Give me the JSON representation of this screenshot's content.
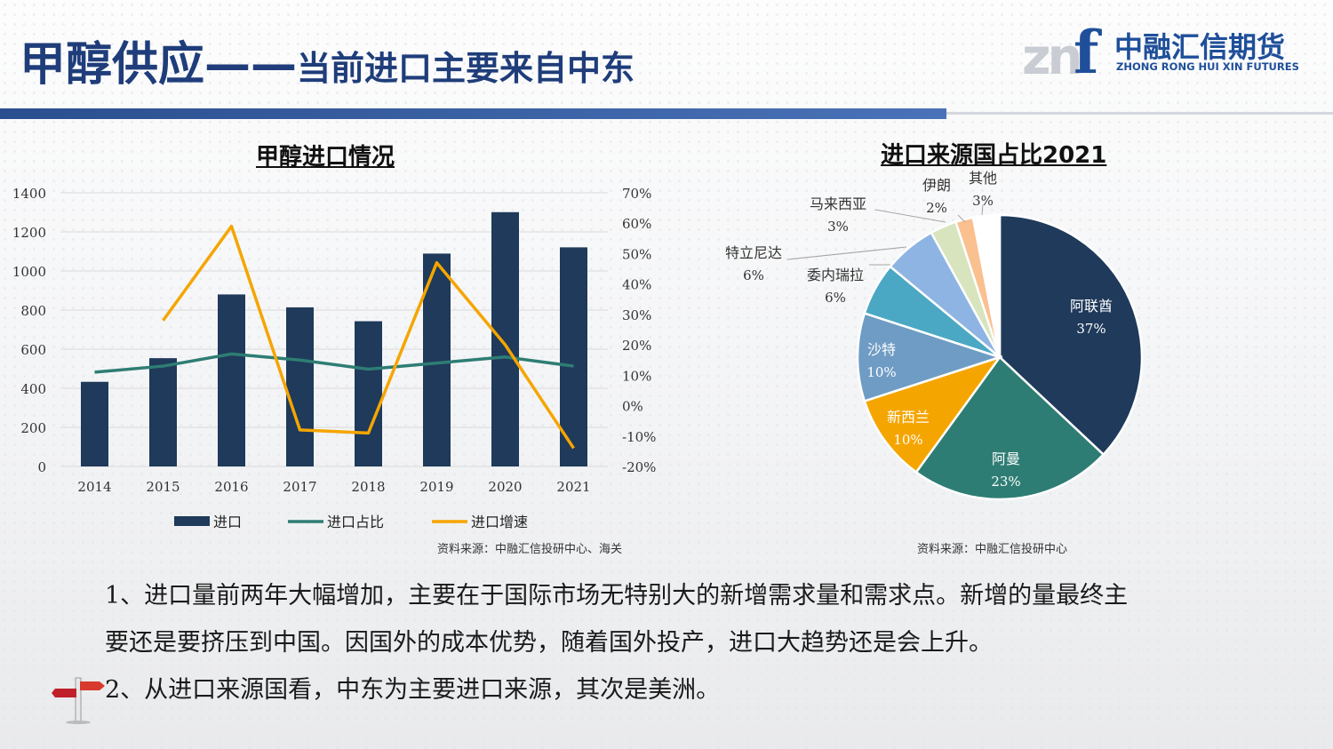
{
  "header": {
    "title_main": "甲醇供应——",
    "title_sub": "当前进口主要来自中东",
    "logo_mark": "znf",
    "logo_cn": "中融汇信期货",
    "logo_en": "ZHONG RONG HUI XIN FUTURES"
  },
  "colors": {
    "navy": "#1f3a5a",
    "teal": "#2e7d74",
    "orange": "#f5a500",
    "title_blue": "#1f3d7a"
  },
  "chart_data": [
    {
      "type": "bar",
      "title": "甲醇进口情况",
      "categories": [
        "2014",
        "2015",
        "2016",
        "2017",
        "2018",
        "2019",
        "2020",
        "2021"
      ],
      "y_ticks": [
        "0",
        "200",
        "400",
        "600",
        "800",
        "1000",
        "1200",
        "1400"
      ],
      "y2_ticks": [
        "-20%",
        "-10%",
        "0%",
        "10%",
        "20%",
        "30%",
        "40%",
        "50%",
        "60%",
        "70%"
      ],
      "ylim": [
        0,
        1400
      ],
      "y2lim": [
        -20,
        70
      ],
      "grid": true,
      "legend_position": "bottom",
      "series": [
        {
          "name": "进口",
          "kind": "bar",
          "axis": "left",
          "color": "#1f3a5a",
          "values": [
            433,
            554,
            880,
            814,
            743,
            1089,
            1301,
            1121
          ]
        },
        {
          "name": "进口占比",
          "kind": "line",
          "axis": "right",
          "color": "#2e7d74",
          "values": [
            11,
            13,
            17,
            15,
            12,
            14,
            16,
            13
          ]
        },
        {
          "name": "进口增速",
          "kind": "line",
          "axis": "right",
          "color": "#f5a500",
          "values": [
            null,
            28,
            59,
            -8,
            -9,
            47,
            20,
            -14
          ]
        }
      ],
      "source": "资料来源：中融汇信投研中心、海关"
    },
    {
      "type": "pie",
      "title": "进口来源国占比2021",
      "slices": [
        {
          "label": "阿联酋",
          "value": 37,
          "pct": "37%",
          "color": "#1f3a5a"
        },
        {
          "label": "阿曼",
          "value": 23,
          "pct": "23%",
          "color": "#2e7d74"
        },
        {
          "label": "新西兰",
          "value": 10,
          "pct": "10%",
          "color": "#f5a500"
        },
        {
          "label": "沙特",
          "value": 10,
          "pct": "10%",
          "color": "#6f9cc4"
        },
        {
          "label": "委内瑞拉",
          "value": 6,
          "pct": "6%",
          "color": "#4aa8c4"
        },
        {
          "label": "特立尼达",
          "value": 6,
          "pct": "6%",
          "color": "#8eb4e3"
        },
        {
          "label": "马来西亚",
          "value": 3,
          "pct": "3%",
          "color": "#d7e4bd"
        },
        {
          "label": "伊朗",
          "value": 2,
          "pct": "2%",
          "color": "#fac090"
        },
        {
          "label": "其他",
          "value": 3,
          "pct": "3%",
          "color": "#ffffff"
        }
      ],
      "source": "资料来源：中融汇信投研中心"
    }
  ],
  "body": {
    "para1_line1": "1、进口量前两年大幅增加，主要在于国际市场无特别大的新增需求量和需求点。新增的量最终主",
    "para1_line2": "要还是要挤压到中国。因国外的成本优势，随着国外投产，进口大趋势还是会上升。",
    "para2": "2、从进口来源国看，中东为主要进口来源，其次是美洲。"
  }
}
